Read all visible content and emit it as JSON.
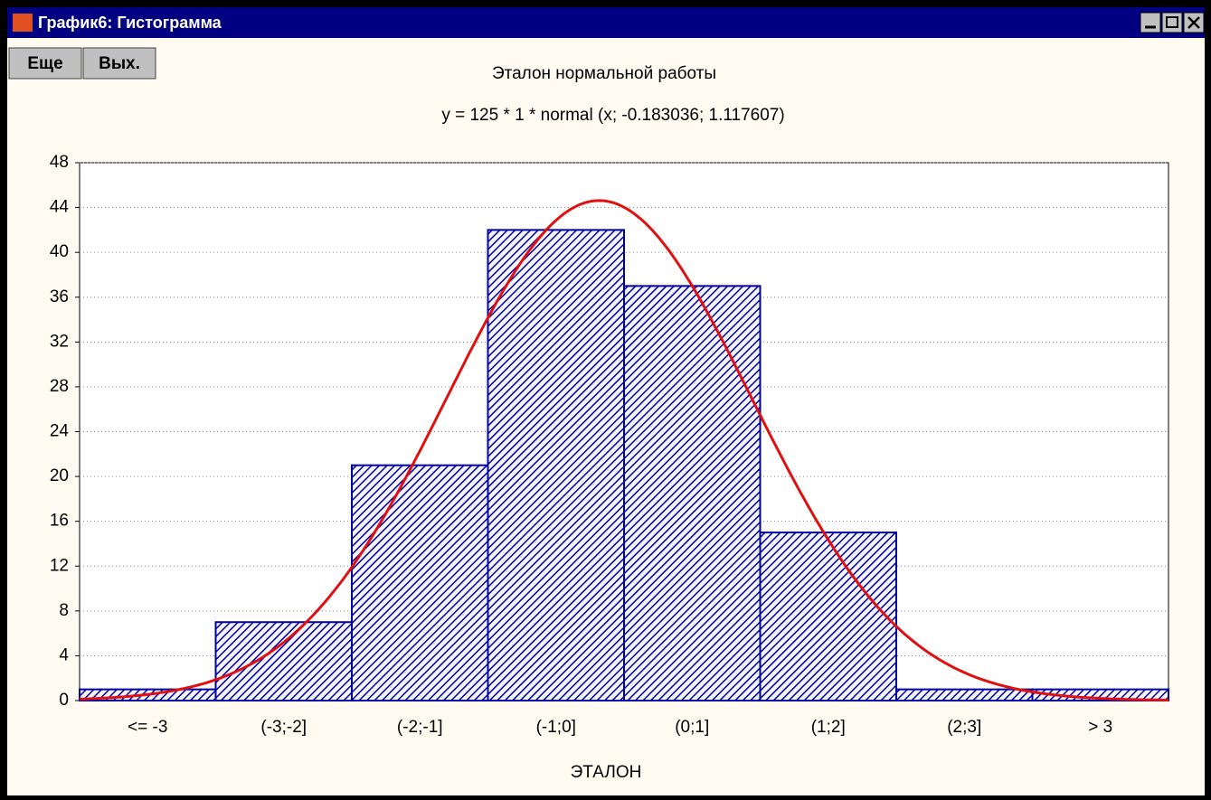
{
  "window": {
    "title": "График6: Гистограмма",
    "buttons": [
      "Еще",
      "Вых."
    ]
  },
  "chart_data": {
    "type": "histogram",
    "title": "Эталон нормальной работы",
    "subtitle": "y = 125 * 1 * normal (x; -0.183036; 1.117607)",
    "x_label": "ЭТАЛОН",
    "categories": [
      "<= -3",
      "(-3;-2]",
      "(-2;-1]",
      "(-1;0]",
      "(0;1]",
      "(1;2]",
      "(2;3]",
      "> 3"
    ],
    "bins": [
      -4,
      -3,
      -2,
      -1,
      0,
      1,
      2,
      3,
      4
    ],
    "values": [
      1,
      7,
      21,
      42,
      37,
      15,
      1,
      1
    ],
    "color": "#0000a0",
    "fit": {
      "n": 125,
      "width": 1,
      "mean": -0.183036,
      "sd": 1.117607,
      "color": "#e01010"
    },
    "ylim": [
      0,
      48
    ],
    "yticks": [
      0,
      4,
      8,
      12,
      16,
      20,
      24,
      28,
      32,
      36,
      40,
      44,
      48
    ],
    "grid": true
  }
}
